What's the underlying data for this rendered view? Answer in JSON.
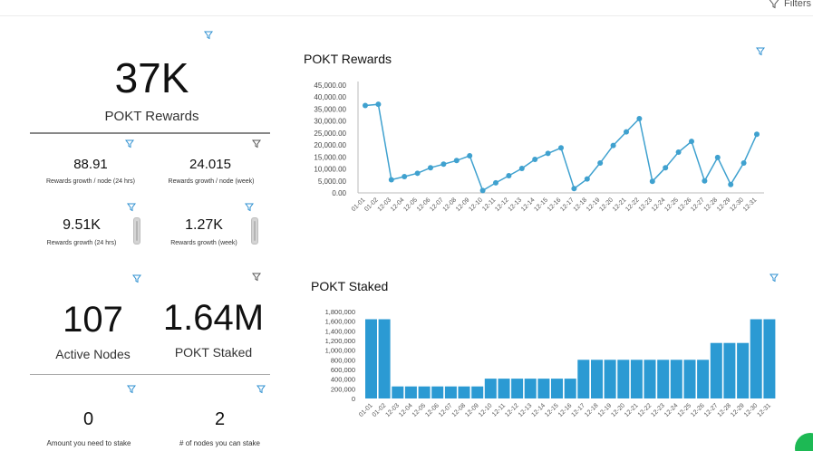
{
  "header": {
    "filters_label": "Filters",
    "filter_icon": "filter-funnel-icon"
  },
  "colors": {
    "accent": "#3fa1cf",
    "bar": "#2b9ad3",
    "filter_icon": "#2c8fd0",
    "divider": "#888888",
    "status": "#1db954"
  },
  "kpis": {
    "rewards": {
      "value": "37K",
      "label": "POKT Rewards"
    },
    "growth_node_24h": {
      "value": "88.91",
      "label": "Rewards growth / node (24 hrs)"
    },
    "growth_node_week": {
      "value": "24.015",
      "label": "Rewards growth / node (week)"
    },
    "growth_24h": {
      "value": "9.51K",
      "label": "Rewards growth (24 hrs)"
    },
    "growth_week": {
      "value": "1.27K",
      "label": "Rewards growth (week)"
    },
    "active_nodes": {
      "value": "107",
      "label": "Active Nodes"
    },
    "staked": {
      "value": "1.64M",
      "label": "POKT Staked"
    },
    "need_to_stake": {
      "value": "0",
      "label": "Amount you need to stake"
    },
    "nodes_can_stake": {
      "value": "2",
      "label": "# of nodes you can stake"
    }
  },
  "chart_data": [
    {
      "type": "line",
      "title": "POKT Rewards",
      "categories": [
        "01-01",
        "01-02",
        "12-03",
        "12-04",
        "12-05",
        "12-06",
        "12-07",
        "12-08",
        "12-09",
        "12-10",
        "12-11",
        "12-12",
        "12-13",
        "12-14",
        "12-15",
        "12-16",
        "12-17",
        "12-18",
        "12-19",
        "12-20",
        "12-21",
        "12-22",
        "12-23",
        "12-24",
        "12-25",
        "12-26",
        "12-27",
        "12-28",
        "12-29",
        "12-30",
        "12-31"
      ],
      "values": [
        36500,
        37000,
        5500,
        6800,
        8200,
        10500,
        12000,
        13500,
        15500,
        1000,
        4200,
        7200,
        10200,
        14000,
        16500,
        18800,
        1800,
        5800,
        12500,
        19800,
        25500,
        31000,
        4800,
        10500,
        17000,
        21500,
        5000,
        14800,
        3500,
        12500,
        24500
      ],
      "ylim": [
        0,
        45000
      ],
      "yticks": [
        "0.00",
        "5,000.00",
        "10,000.00",
        "15,000.00",
        "20,000.00",
        "25,000.00",
        "30,000.00",
        "35,000.00",
        "40,000.00",
        "45,000.00"
      ],
      "grid": false
    },
    {
      "type": "bar",
      "title": "POKT Staked",
      "categories": [
        "01-01",
        "01-02",
        "12-03",
        "12-04",
        "12-05",
        "12-06",
        "12-07",
        "12-08",
        "12-09",
        "12-10",
        "12-11",
        "12-12",
        "12-13",
        "12-14",
        "12-15",
        "12-16",
        "12-17",
        "12-18",
        "12-19",
        "12-20",
        "12-21",
        "12-22",
        "12-23",
        "12-24",
        "12-25",
        "12-26",
        "12-27",
        "12-28",
        "12-29",
        "12-30",
        "12-31"
      ],
      "values": [
        1640000,
        1640000,
        250000,
        250000,
        250000,
        250000,
        250000,
        250000,
        250000,
        410000,
        410000,
        410000,
        410000,
        410000,
        410000,
        410000,
        800000,
        800000,
        800000,
        800000,
        800000,
        800000,
        800000,
        800000,
        800000,
        800000,
        1150000,
        1150000,
        1150000,
        1640000,
        1640000
      ],
      "ylim": [
        0,
        1800000
      ],
      "yticks": [
        "0",
        "200,000",
        "400,000",
        "600,000",
        "800,000",
        "1,000,000",
        "1,200,000",
        "1,400,000",
        "1,600,000",
        "1,800,000"
      ],
      "grid": false
    }
  ]
}
